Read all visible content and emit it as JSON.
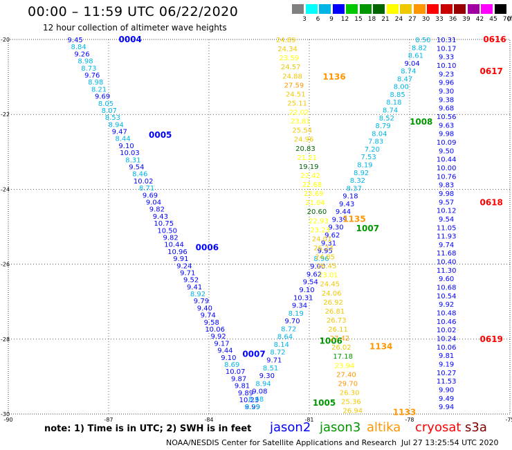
{
  "title": "00:00 – 11:59 UTC 06/22/2020",
  "subtitle": "12 hour collection of altimeter wave heights",
  "colorbar": {
    "unit": "(ft)",
    "bins": [
      {
        "label": "3",
        "color": "#808080"
      },
      {
        "label": "6",
        "color": "#00ffff"
      },
      {
        "label": "9",
        "color": "#00b4e6"
      },
      {
        "label": "12",
        "color": "#0000ff"
      },
      {
        "label": "15",
        "color": "#00c800"
      },
      {
        "label": "18",
        "color": "#009600"
      },
      {
        "label": "21",
        "color": "#006400"
      },
      {
        "label": "24",
        "color": "#ffff00"
      },
      {
        "label": "27",
        "color": "#f0c800"
      },
      {
        "label": "30",
        "color": "#ff9600"
      },
      {
        "label": "33",
        "color": "#ff0000"
      },
      {
        "label": "36",
        "color": "#c80000"
      },
      {
        "label": "39",
        "color": "#960000"
      },
      {
        "label": "42",
        "color": "#a000a0"
      },
      {
        "label": "45",
        "color": "#ff00ff"
      },
      {
        "label": "70",
        "color": "#000000"
      }
    ]
  },
  "chart_data": {
    "type": "scatter",
    "xlim": [
      -90,
      -75
    ],
    "ylim": [
      -30,
      -20
    ],
    "x_ticks": [
      -90,
      -87,
      -84,
      -81,
      -78,
      -75
    ],
    "y_ticks": [
      -20,
      -22,
      -24,
      -26,
      -28,
      -30
    ],
    "grid": "dotted",
    "series": [
      {
        "name": "jason2",
        "color": "#0000ff",
        "track": [
          [
            -88.0,
            -20.0
          ],
          [
            -82.7,
            -29.8
          ]
        ],
        "times": [
          {
            "label": "0004",
            "lon": -86.7,
            "lat": -20.0
          },
          {
            "label": "0005",
            "lon": -85.8,
            "lat": -22.55
          },
          {
            "label": "0006",
            "lon": -84.4,
            "lat": -25.55
          },
          {
            "label": "0007",
            "lon": -83.0,
            "lat": -28.4
          }
        ],
        "values": [
          "9.45",
          "8.84",
          "9.26",
          "8.98",
          "8.73",
          "9.76",
          "8.98",
          "8.21",
          "9.69",
          "8.05",
          "8.07",
          "8.53",
          "8.94",
          "9.47",
          "8.44",
          "9.10",
          "10.03",
          "8.31",
          "9.54",
          "8.46",
          "10.02",
          "8.71",
          "9.69",
          "9.04",
          "9.82",
          "9.43",
          "10.75",
          "10.50",
          "9.82",
          "10.44",
          "10.96",
          "9.91",
          "9.24",
          "9.71",
          "9.52",
          "9.41",
          "8.92",
          "9.79",
          "9.40",
          "9.74",
          "9.58",
          "10.06",
          "9.92",
          "9.17",
          "9.44",
          "9.10",
          "8.69",
          "10.07",
          "9.87",
          "9.81",
          "9.89",
          "10.23",
          "9.99"
        ]
      },
      {
        "name": "jason3",
        "color": "#009600",
        "track": [
          [
            -82.7,
            -29.8
          ],
          [
            -77.6,
            -20.0
          ]
        ],
        "times": [
          {
            "label": "1005",
            "lon": -80.9,
            "lat": -29.7
          },
          {
            "label": "1006",
            "lon": -80.7,
            "lat": -28.05
          },
          {
            "label": "1007",
            "lon": -79.6,
            "lat": -25.05
          },
          {
            "label": "1008",
            "lon": -78.0,
            "lat": -22.2
          }
        ],
        "values": [
          "8.29",
          "8.68",
          "9.08",
          "8.94",
          "9.30",
          "8.51",
          "9.71",
          "8.72",
          "8.14",
          "8.64",
          "8.72",
          "9.70",
          "8.19",
          "9.34",
          "10.31",
          "9.10",
          "9.54",
          "9.62",
          "9.00",
          "8.96",
          "9.95",
          "9.31",
          "9.62",
          "9.30",
          "9.39",
          "9.44",
          "9.43",
          "9.18",
          "8.37",
          "8.32",
          "8.92",
          "8.19",
          "7.53",
          "7.20",
          "7.83",
          "8.04",
          "8.79",
          "8.52",
          "8.74",
          "8.18",
          "8.85",
          "8.00",
          "8.47",
          "8.74",
          "9.04",
          "8.61",
          "8.82",
          "8.50"
        ]
      },
      {
        "name": "altika",
        "color": "#ff9600",
        "track": [
          [
            -81.7,
            -20.0
          ],
          [
            -79.7,
            -29.9
          ]
        ],
        "times": [
          {
            "label": "1136",
            "lon": -80.6,
            "lat": -21.0
          },
          {
            "label": "1135",
            "lon": -80.0,
            "lat": -24.8
          },
          {
            "label": "1134",
            "lon": -79.2,
            "lat": -28.2
          },
          {
            "label": "1133",
            "lon": -78.5,
            "lat": -29.95
          }
        ],
        "values": [
          "24.89",
          "24.34",
          "23.59",
          "24.57",
          "24.88",
          "27.59",
          "24.51",
          "25.11",
          "22.02",
          "23.81",
          "25.54",
          "24.96",
          "20.83",
          "21.21",
          "19.19",
          "22.42",
          "22.68",
          "23.69",
          "21.04",
          "20.60",
          "22.93",
          "23.23",
          "24.01",
          "26.23",
          "24.85",
          "26.45",
          "23.01",
          "24.45",
          "24.06",
          "26.92",
          "26.81",
          "26.73",
          "26.11",
          "27.42",
          "26.02",
          "17.18",
          "23.94",
          "27.40",
          "29.70",
          "26.30",
          "25.36",
          "26.94"
        ]
      },
      {
        "name": "cryosat",
        "color": "#ff0000",
        "track": [
          [
            -76.9,
            -20.0
          ],
          [
            -76.9,
            -29.8
          ]
        ],
        "times": [
          {
            "label": "0616",
            "lon": -75.8,
            "lat": -20.0
          },
          {
            "label": "0617",
            "lon": -75.9,
            "lat": -20.85
          },
          {
            "label": "0618",
            "lon": -75.9,
            "lat": -24.35
          },
          {
            "label": "0619",
            "lon": -75.9,
            "lat": -28.0
          }
        ],
        "values": [
          "10.31",
          "10.17",
          "9.33",
          "10.10",
          "9.23",
          "9.96",
          "9.30",
          "9.38",
          "9.68",
          "10.56",
          "9.63",
          "9.98",
          "10.09",
          "9.50",
          "10.44",
          "10.00",
          "10.76",
          "9.83",
          "9.98",
          "9.57",
          "10.12",
          "9.54",
          "11.05",
          "11.93",
          "9.74",
          "11.68",
          "10.40",
          "11.30",
          "9.60",
          "10.68",
          "10.54",
          "9.92",
          "10.48",
          "10.46",
          "10.02",
          "10.24",
          "10.06",
          "9.81",
          "9.19",
          "10.27",
          "11.53",
          "9.90",
          "9.49",
          "9.94"
        ]
      },
      {
        "name": "s3a",
        "color": "#800000",
        "values": []
      }
    ]
  },
  "note": "note:  1) Time is in UTC;  2) SWH is in feet",
  "legend": [
    {
      "label": "jason2",
      "color": "#0000ff"
    },
    {
      "label": "jason3",
      "color": "#009600"
    },
    {
      "label": "altika",
      "color": "#ff9600"
    },
    {
      "label": "cryosat",
      "color": "#ff0000"
    },
    {
      "label": "s3a",
      "color": "#800000"
    }
  ],
  "credit": "NOAA/NESDIS Center for Satellite Applications and Research",
  "timestamp": "Jul 27 13:25:54 UTC 2020"
}
